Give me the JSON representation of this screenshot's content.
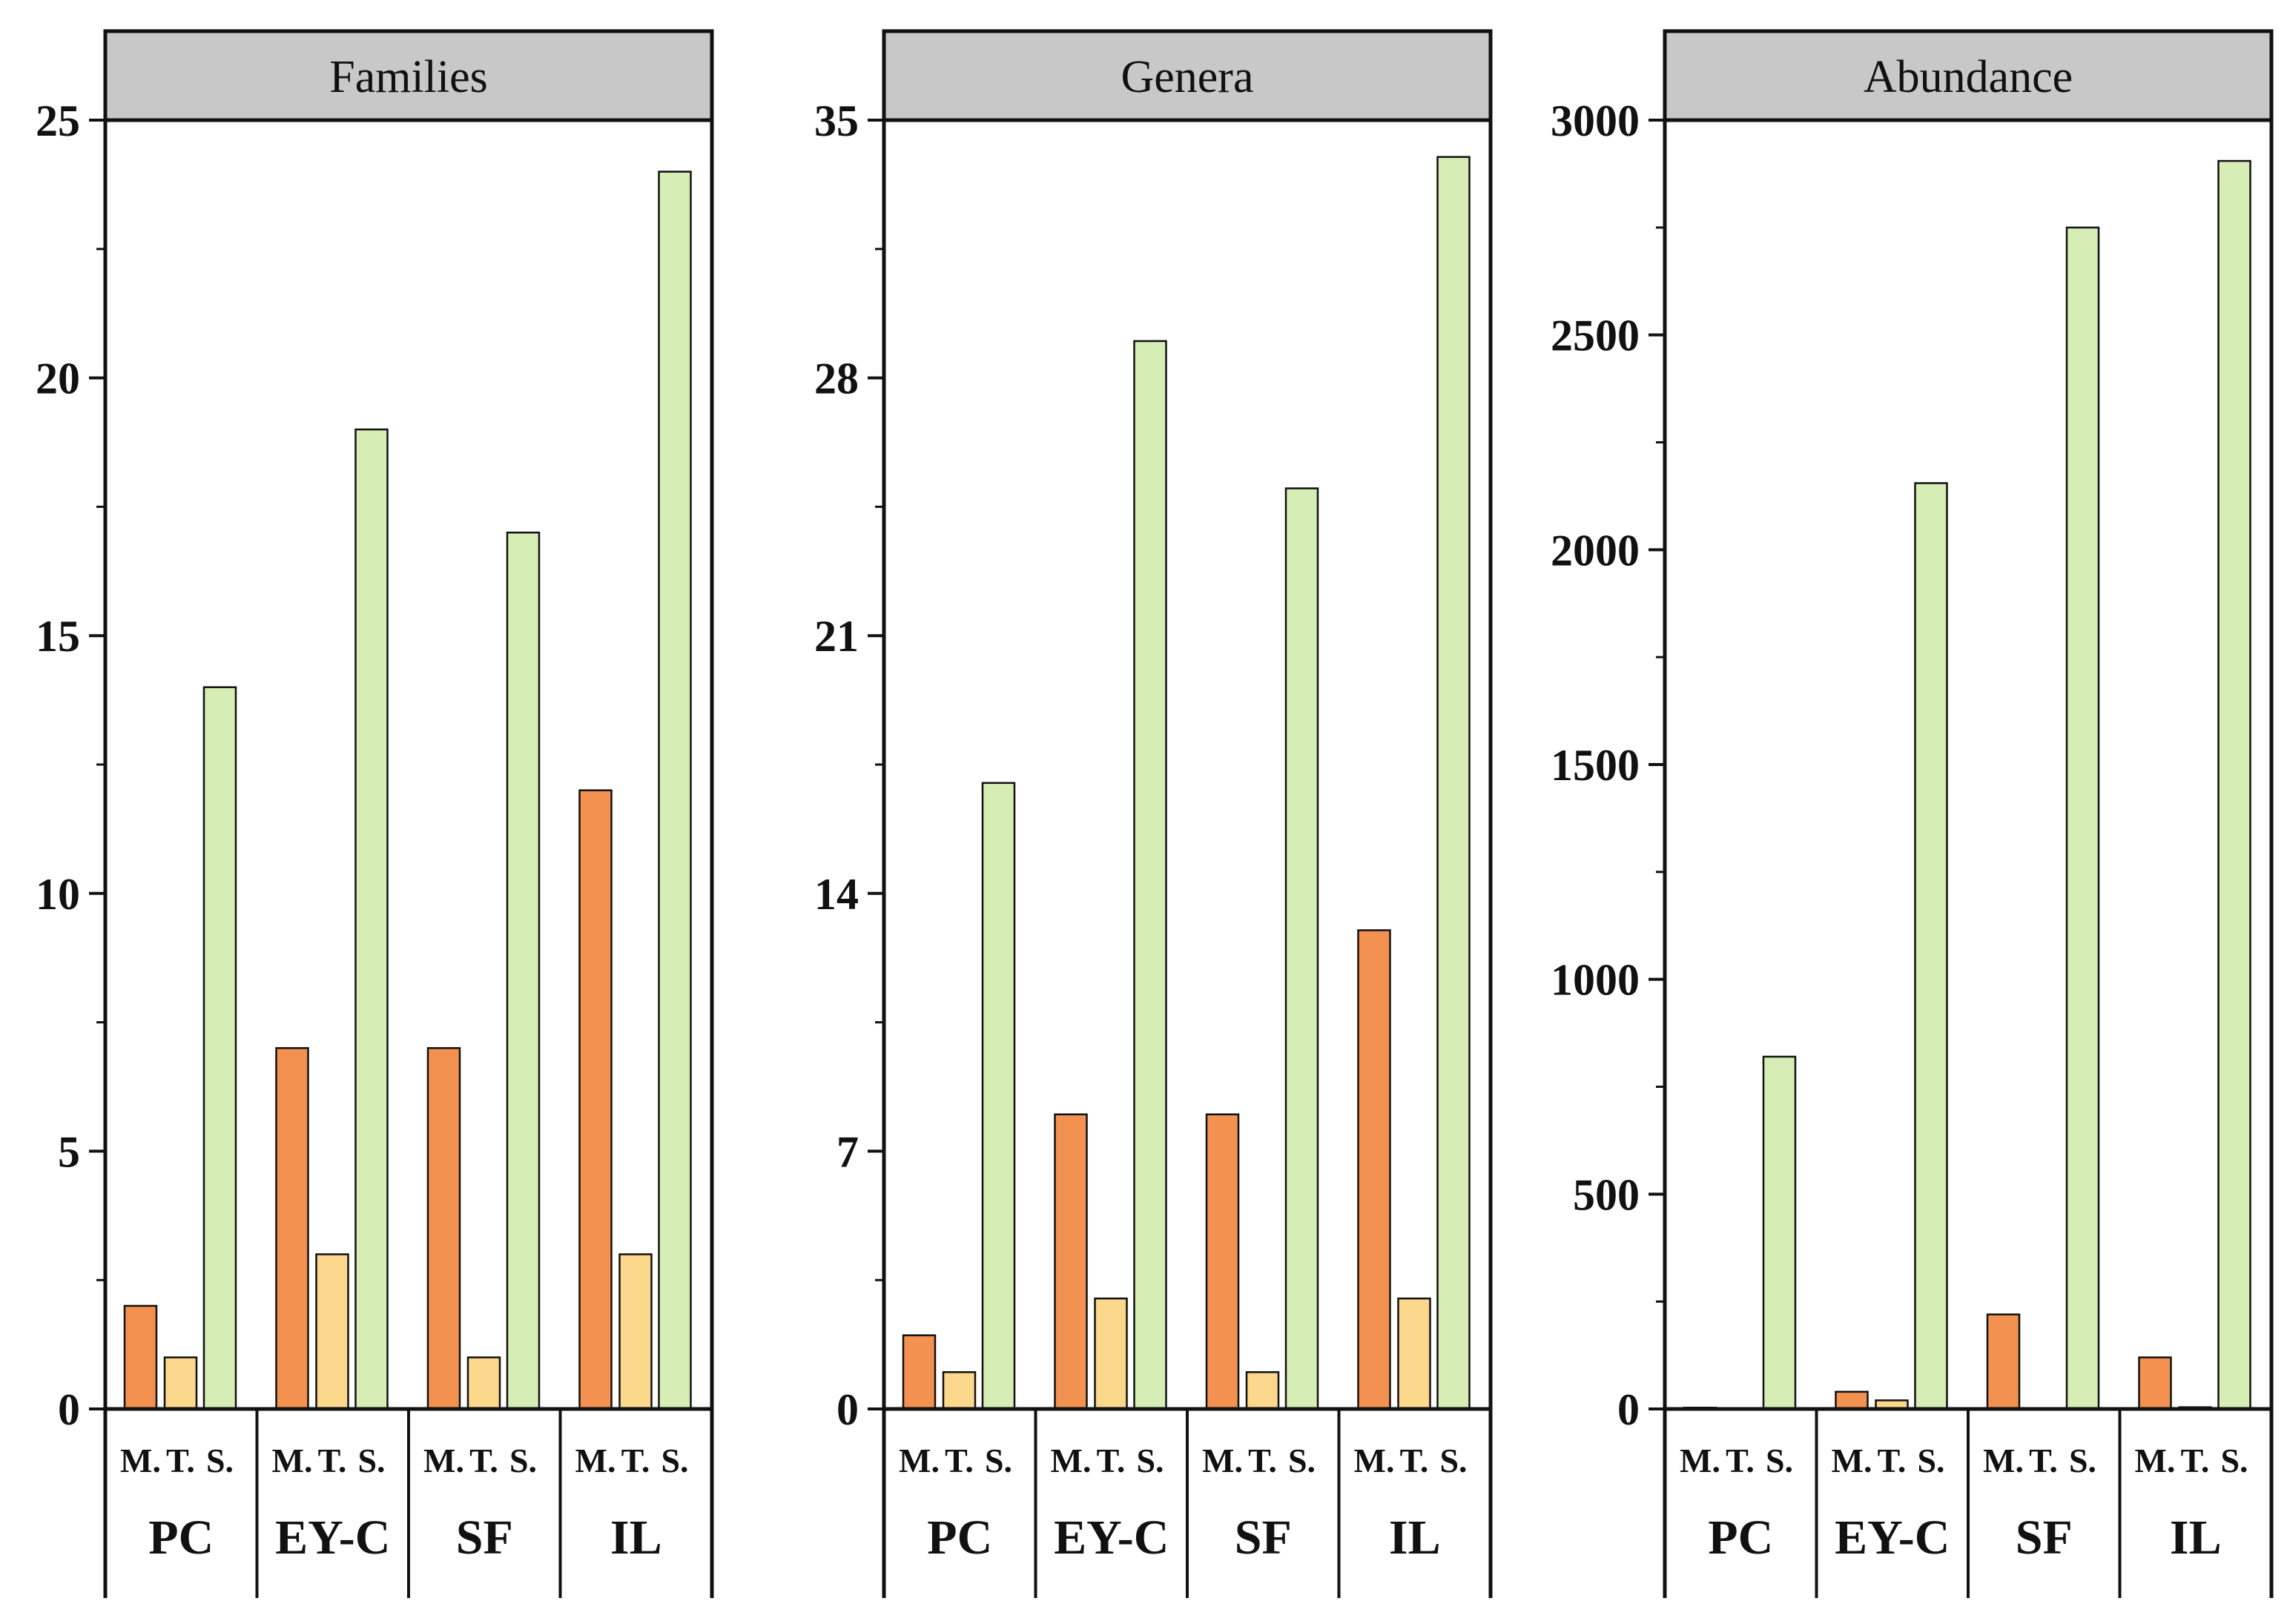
{
  "chart_data": [
    {
      "type": "bar",
      "title": "Families",
      "categories": [
        "PC",
        "EY-C",
        "SF",
        "IL"
      ],
      "subcategories": [
        "M.",
        "T.",
        "S."
      ],
      "series": [
        {
          "name": "M.",
          "values": [
            2,
            7,
            7,
            12
          ]
        },
        {
          "name": "T.",
          "values": [
            1,
            3,
            1,
            3
          ]
        },
        {
          "name": "S.",
          "values": [
            14,
            19,
            17,
            24
          ]
        }
      ],
      "ylim": [
        0,
        25
      ],
      "yticks": [
        0,
        5,
        10,
        15,
        20,
        25
      ],
      "ytick_labels": [
        "0",
        "5",
        "10",
        "15",
        "20",
        "25"
      ],
      "xlabel": "",
      "ylabel": ""
    },
    {
      "type": "bar",
      "title": "Genera",
      "categories": [
        "PC",
        "EY-C",
        "SF",
        "IL"
      ],
      "subcategories": [
        "M.",
        "T.",
        "S."
      ],
      "series": [
        {
          "name": "M.",
          "values": [
            2,
            8,
            8,
            13
          ]
        },
        {
          "name": "T.",
          "values": [
            1,
            3,
            1,
            3
          ]
        },
        {
          "name": "S.",
          "values": [
            17,
            29,
            25,
            34
          ]
        }
      ],
      "ylim": [
        0,
        35
      ],
      "yticks": [
        0,
        7,
        14,
        21,
        28,
        35
      ],
      "ytick_labels": [
        "0",
        "7",
        "14",
        "21",
        "28",
        "35"
      ],
      "xlabel": "",
      "ylabel": ""
    },
    {
      "type": "bar",
      "title": "Abundance",
      "categories": [
        "PC",
        "EY-C",
        "SF",
        "IL"
      ],
      "subcategories": [
        "M.",
        "T.",
        "S."
      ],
      "series": [
        {
          "name": "M.",
          "values": [
            3,
            40,
            220,
            120
          ]
        },
        {
          "name": "T.",
          "values": [
            0,
            20,
            0,
            4
          ]
        },
        {
          "name": "S.",
          "values": [
            820,
            2155,
            2750,
            2905
          ]
        }
      ],
      "ylim": [
        0,
        3000
      ],
      "yticks": [
        0,
        500,
        1000,
        1500,
        2000,
        2500,
        3000
      ],
      "ytick_labels": [
        "0",
        "500",
        "1000",
        "1500",
        "2000",
        "2500",
        "3000"
      ],
      "xlabel": "",
      "ylabel": ""
    }
  ],
  "colors": {
    "M.": "#f39150",
    "T.": "#fcd88c",
    "S.": "#d6eeb6",
    "header": "#c8c8c8",
    "axis": "#111111"
  }
}
